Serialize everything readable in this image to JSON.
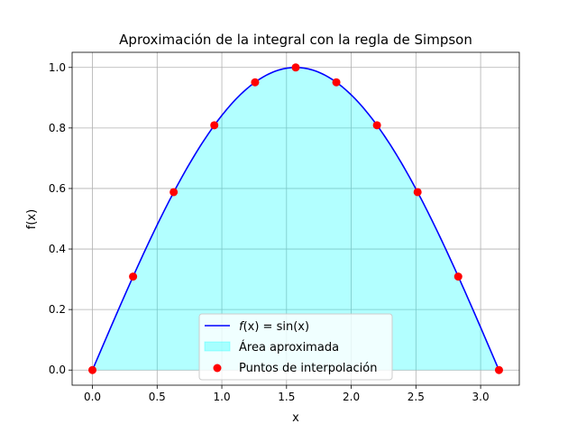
{
  "chart_data": {
    "type": "line",
    "title": "Aproximación de la integral con la regla de Simpson",
    "xlabel": "x",
    "ylabel": "f(x)",
    "xlim": [
      -0.157,
      3.299
    ],
    "ylim": [
      -0.05,
      1.05
    ],
    "xticks": [
      0.0,
      0.5,
      1.0,
      1.5,
      2.0,
      2.5,
      3.0
    ],
    "xtick_labels": [
      "0.0",
      "0.5",
      "1.0",
      "1.5",
      "2.0",
      "2.5",
      "3.0"
    ],
    "yticks": [
      0.0,
      0.2,
      0.4,
      0.6,
      0.8,
      1.0
    ],
    "ytick_labels": [
      "0.0",
      "0.2",
      "0.4",
      "0.6",
      "0.8",
      "1.0"
    ],
    "grid": true,
    "legend_position": "lower center",
    "series": [
      {
        "name": "f(x) = sin(x)",
        "kind": "line",
        "function": "sin",
        "x_range": [
          0,
          3.14159
        ],
        "color": "#0000ff"
      },
      {
        "name": "Área aproximada",
        "kind": "area",
        "function": "sin",
        "x_range": [
          0,
          3.14159
        ],
        "color": "#00ffff",
        "opacity": 0.3
      },
      {
        "name": "Puntos de interpolación",
        "kind": "scatter",
        "color": "#ff0000",
        "x": [
          0.0,
          0.314,
          0.628,
          0.942,
          1.257,
          1.571,
          1.885,
          2.199,
          2.513,
          2.827,
          3.142
        ],
        "y": [
          0.0,
          0.309,
          0.588,
          0.809,
          0.951,
          1.0,
          0.951,
          0.809,
          0.588,
          0.309,
          0.0
        ]
      }
    ]
  },
  "legend": {
    "line_label_prefix": "f",
    "line_label_rest": "(x) = sin(x)",
    "area_label": "Área aproximada",
    "points_label": "Puntos de interpolación"
  }
}
